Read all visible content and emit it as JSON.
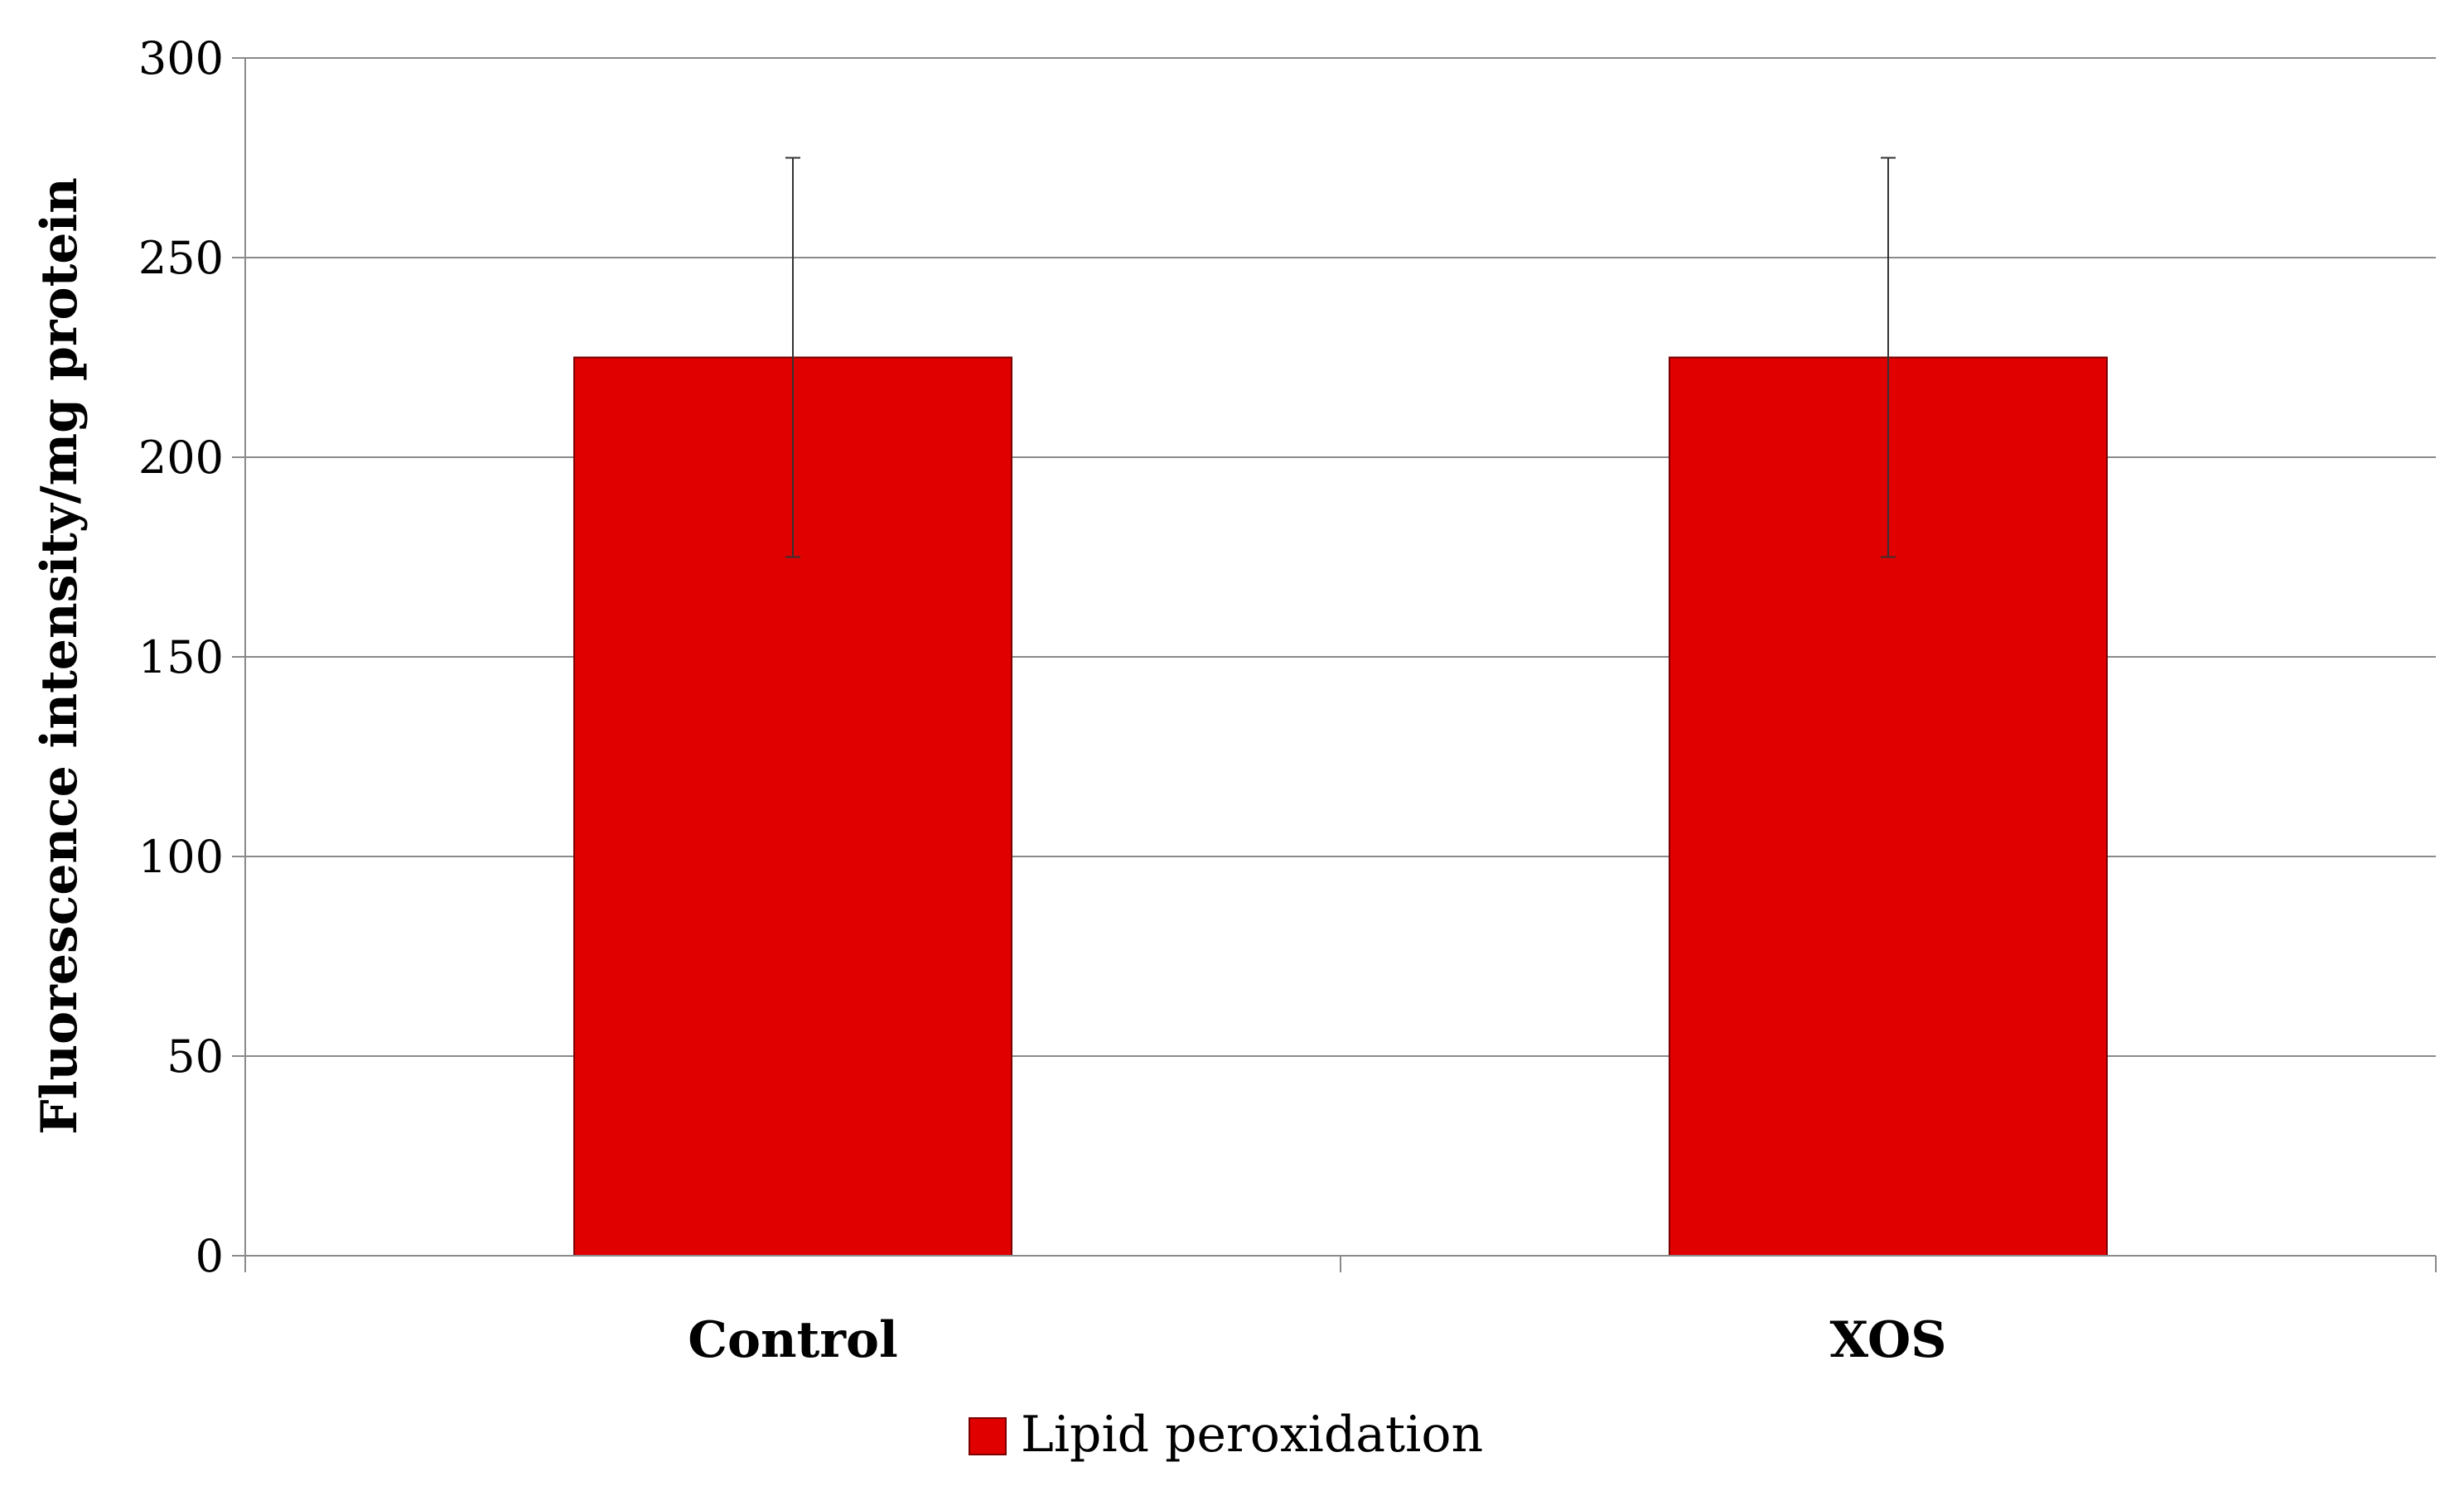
{
  "chart_data": {
    "type": "bar",
    "title": "",
    "xlabel": "",
    "ylabel": "Fluorescence intensity/mg protein",
    "categories": [
      "Control",
      "XOS"
    ],
    "series": [
      {
        "name": "Lipid peroxidation",
        "color": "#e00000",
        "values": [
          225,
          225
        ],
        "error": [
          50,
          50
        ]
      }
    ],
    "ylim": [
      0,
      300
    ],
    "yticks": [
      0,
      50,
      100,
      150,
      200,
      250,
      300
    ],
    "grid": true,
    "legend": "bottom-center"
  }
}
